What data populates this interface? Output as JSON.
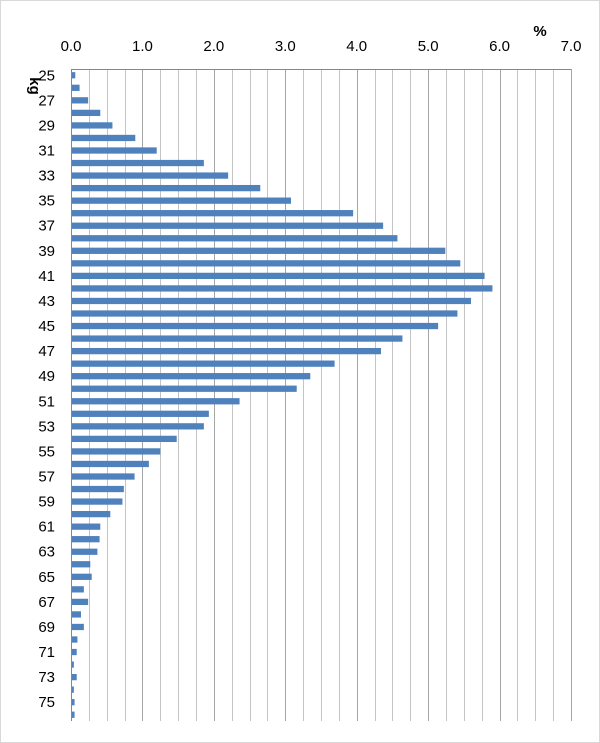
{
  "chart_data": {
    "type": "bar",
    "orientation": "horizontal",
    "title": "",
    "xlabel": "%",
    "ylabel": "kg",
    "xlim": [
      0,
      7
    ],
    "x_ticks": [
      "0.0",
      "1.0",
      "2.0",
      "3.0",
      "4.0",
      "5.0",
      "6.0",
      "7.0"
    ],
    "x_axis_position": "top",
    "grid": true,
    "legend": "none",
    "bar_color": "#4f81bd",
    "categories": [
      25,
      26,
      27,
      28,
      29,
      30,
      31,
      32,
      33,
      34,
      35,
      36,
      37,
      38,
      39,
      40,
      41,
      42,
      43,
      44,
      45,
      46,
      47,
      48,
      49,
      50,
      51,
      52,
      53,
      54,
      55,
      56,
      57,
      58,
      59,
      60,
      61,
      62,
      63,
      64,
      65,
      66,
      67,
      68,
      69,
      70,
      71,
      72,
      73,
      74,
      75,
      76
    ],
    "y_tick_labels": [
      "25",
      "27",
      "29",
      "31",
      "33",
      "35",
      "37",
      "39",
      "41",
      "43",
      "45",
      "47",
      "49",
      "51",
      "53",
      "55",
      "57",
      "59",
      "61",
      "63",
      "65",
      "67",
      "69",
      "71",
      "73",
      "75"
    ],
    "values": [
      0.06,
      0.12,
      0.24,
      0.41,
      0.58,
      0.9,
      1.2,
      1.86,
      2.2,
      2.65,
      3.08,
      3.95,
      4.37,
      4.57,
      5.24,
      5.45,
      5.79,
      5.9,
      5.6,
      5.41,
      5.14,
      4.64,
      4.34,
      3.69,
      3.35,
      3.16,
      2.36,
      1.93,
      1.86,
      1.48,
      1.25,
      1.09,
      0.89,
      0.74,
      0.72,
      0.55,
      0.41,
      0.4,
      0.37,
      0.27,
      0.29,
      0.18,
      0.24,
      0.14,
      0.18,
      0.09,
      0.08,
      0.04,
      0.08,
      0.04,
      0.05,
      0.05
    ]
  }
}
